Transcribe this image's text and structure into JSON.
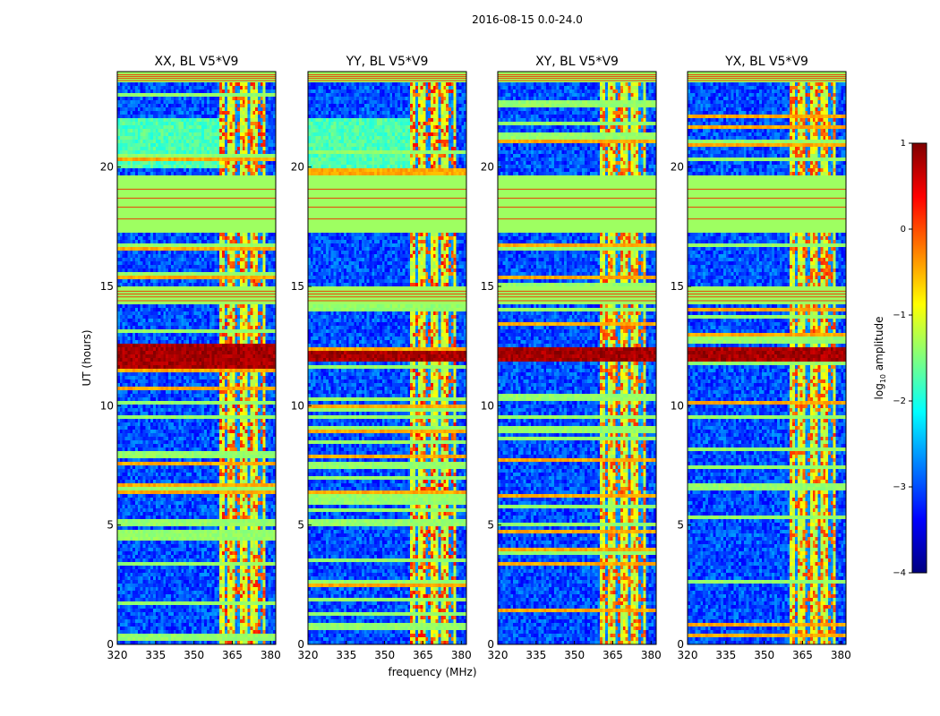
{
  "figure": {
    "suptitle": "2016-08-15 0.0-24.0",
    "xlabel": "frequency (MHz)",
    "ylabel": "UT (hours)"
  },
  "colors": {
    "jet": [
      "#00007f",
      "#0000ff",
      "#007fff",
      "#00ffff",
      "#7fff7f",
      "#ffff00",
      "#ff7f00",
      "#ff0000",
      "#7f0000"
    ],
    "background_green": "#99ff66"
  },
  "chart_data": [
    {
      "type": "heatmap",
      "title": "XX, BL V5*V9",
      "xlabel": "frequency (MHz)",
      "ylabel": "UT (hours)",
      "xlim": [
        320,
        382
      ],
      "ylim": [
        0,
        24
      ],
      "xticks": [
        320,
        335,
        350,
        365,
        380
      ],
      "xtick_labels": [
        "320",
        "335",
        "350",
        "365",
        "380"
      ],
      "yticks": [
        0,
        5,
        10,
        15,
        20
      ],
      "ytick_labels": [
        "0",
        "5",
        "10",
        "15",
        "20"
      ],
      "value_units": "log10 amplitude",
      "flagged_bands_hours": [
        [
          17.2,
          19.7
        ],
        [
          14.2,
          15.0
        ],
        [
          23.5,
          24.0
        ]
      ],
      "bright_band_hours": [
        11.6,
        12.6
      ],
      "rfi_band_mhz": [
        360.5,
        378
      ],
      "rfi_amp_boost": 0.6
    },
    {
      "type": "heatmap",
      "title": "YY, BL V5*V9",
      "xlabel": "frequency (MHz)",
      "ylabel": "",
      "xlim": [
        320,
        382
      ],
      "ylim": [
        0,
        24
      ],
      "xticks": [
        320,
        335,
        350,
        365,
        380
      ],
      "xtick_labels": [
        "320",
        "335",
        "350",
        "365",
        "380"
      ],
      "yticks": [
        0,
        5,
        10,
        15,
        20
      ],
      "ytick_labels": [
        "0",
        "5",
        "10",
        "15",
        "20"
      ],
      "value_units": "log10 amplitude",
      "flagged_bands_hours": [
        [
          17.2,
          19.7
        ],
        [
          14.2,
          15.0
        ],
        [
          23.5,
          24.0
        ]
      ],
      "bright_band_hours": [
        11.9,
        12.3
      ],
      "rfi_band_mhz": [
        360.5,
        378
      ],
      "rfi_amp_boost": 0.7
    },
    {
      "type": "heatmap",
      "title": "XY, BL V5*V9",
      "xlabel": "frequency (MHz)",
      "ylabel": "",
      "xlim": [
        320,
        382
      ],
      "ylim": [
        0,
        24
      ],
      "xticks": [
        320,
        335,
        350,
        365,
        380
      ],
      "xtick_labels": [
        "320",
        "335",
        "350",
        "365",
        "380"
      ],
      "yticks": [
        0,
        5,
        10,
        15,
        20
      ],
      "ytick_labels": [
        "0",
        "5",
        "10",
        "15",
        "20"
      ],
      "value_units": "log10 amplitude",
      "flagged_bands_hours": [
        [
          17.2,
          19.7
        ],
        [
          14.2,
          15.0
        ],
        [
          23.5,
          24.0
        ]
      ],
      "bright_band_hours": [
        11.8,
        12.4
      ],
      "rfi_band_mhz": [
        360.5,
        378
      ],
      "rfi_amp_boost": 0.5
    },
    {
      "type": "heatmap",
      "title": "YX, BL V5*V9",
      "xlabel": "frequency (MHz)",
      "ylabel": "",
      "xlim": [
        320,
        382
      ],
      "ylim": [
        0,
        24
      ],
      "xticks": [
        320,
        335,
        350,
        365,
        380
      ],
      "xtick_labels": [
        "320",
        "335",
        "350",
        "365",
        "380"
      ],
      "yticks": [
        0,
        5,
        10,
        15,
        20
      ],
      "ytick_labels": [
        "0",
        "5",
        "10",
        "15",
        "20"
      ],
      "value_units": "log10 amplitude",
      "flagged_bands_hours": [
        [
          17.2,
          19.7
        ],
        [
          14.2,
          15.0
        ],
        [
          23.5,
          24.0
        ]
      ],
      "bright_band_hours": [
        11.8,
        12.4
      ],
      "rfi_band_mhz": [
        360.5,
        378
      ],
      "rfi_amp_boost": 0.5
    }
  ],
  "colorbar": {
    "label_prefix": "log",
    "label_subscript": "10",
    "label_suffix": " amplitude",
    "range": [
      -4,
      1
    ],
    "ticks": [
      1,
      0,
      -1,
      -2,
      -3,
      -4
    ],
    "tick_labels": [
      "1",
      "0",
      "−1",
      "−2",
      "−3",
      "−4"
    ]
  }
}
